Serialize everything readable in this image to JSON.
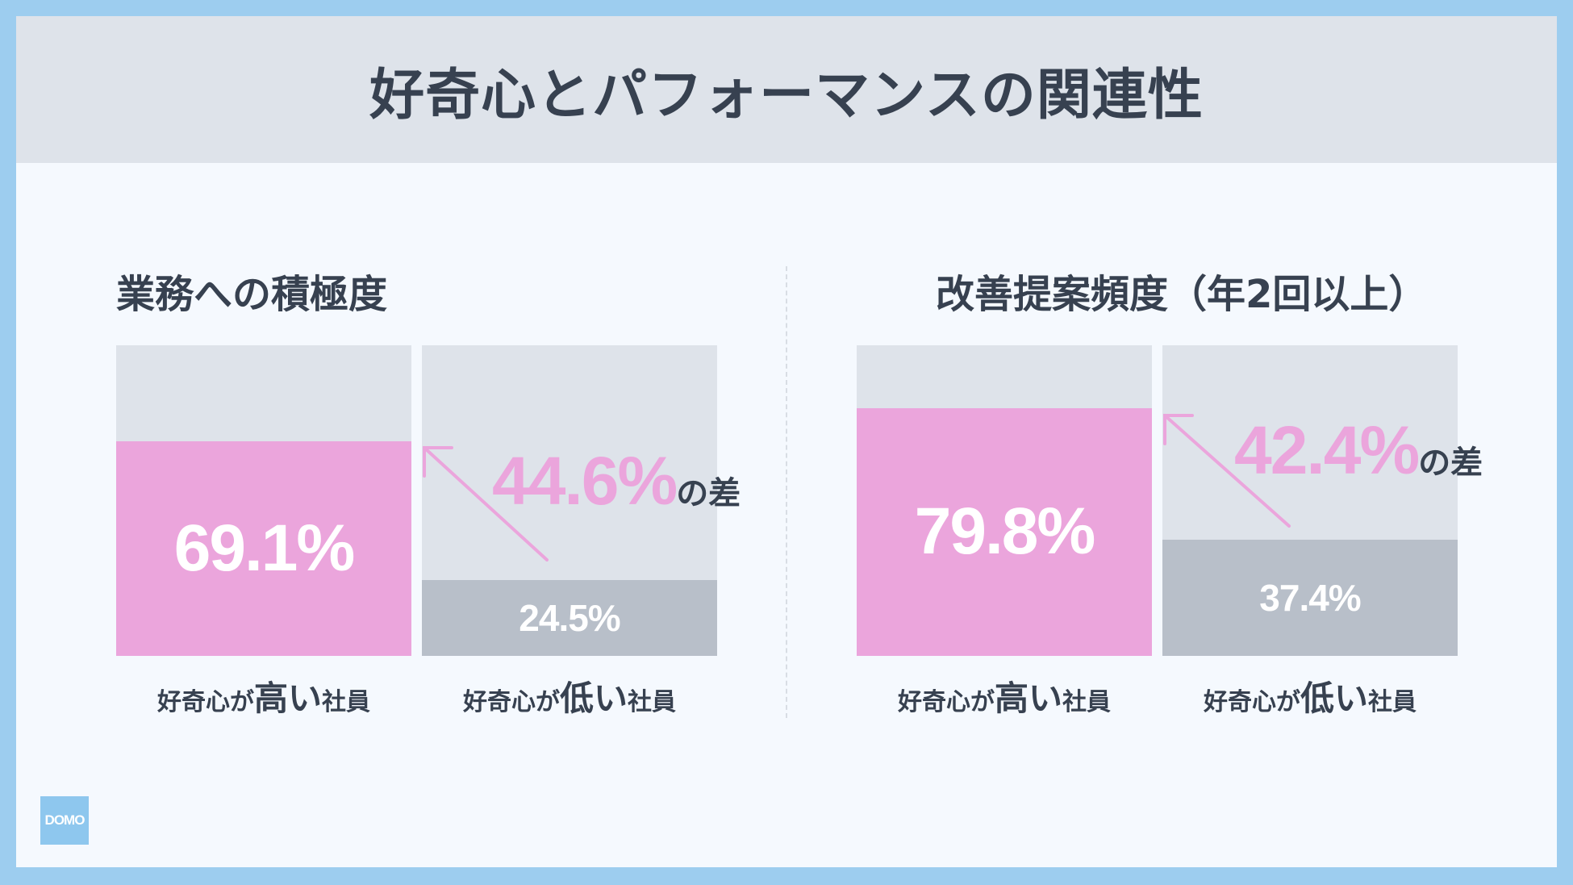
{
  "title": "好奇心とパフォーマンスの関連性",
  "colors": {
    "high": "#eba5dc",
    "low": "#b8bfc9",
    "background_bar": "#dee3ea",
    "text": "#374150",
    "frame": "#9dcdef"
  },
  "logo": "DOMO",
  "chart_data": [
    {
      "type": "bar",
      "title": "業務への積極度",
      "categories": [
        "好奇心が高い社員",
        "好奇心が低い社員"
      ],
      "values": [
        69.1,
        24.5
      ],
      "value_labels": [
        "69.1%",
        "24.5%"
      ],
      "ylim": [
        0,
        100
      ],
      "annotation": {
        "value": "44.6%",
        "suffix": "の差"
      },
      "category_parts": [
        {
          "pre": "好奇心が",
          "emph": "高い",
          "post": "社員"
        },
        {
          "pre": "好奇心が",
          "emph": "低い",
          "post": "社員"
        }
      ]
    },
    {
      "type": "bar",
      "title": "改善提案頻度（年2回以上）",
      "categories": [
        "好奇心が高い社員",
        "好奇心が低い社員"
      ],
      "values": [
        79.8,
        37.4
      ],
      "value_labels": [
        "79.8%",
        "37.4%"
      ],
      "ylim": [
        0,
        100
      ],
      "annotation": {
        "value": "42.4%",
        "suffix": "の差"
      },
      "category_parts": [
        {
          "pre": "好奇心が",
          "emph": "高い",
          "post": "社員"
        },
        {
          "pre": "好奇心が",
          "emph": "低い",
          "post": "社員"
        }
      ]
    }
  ]
}
